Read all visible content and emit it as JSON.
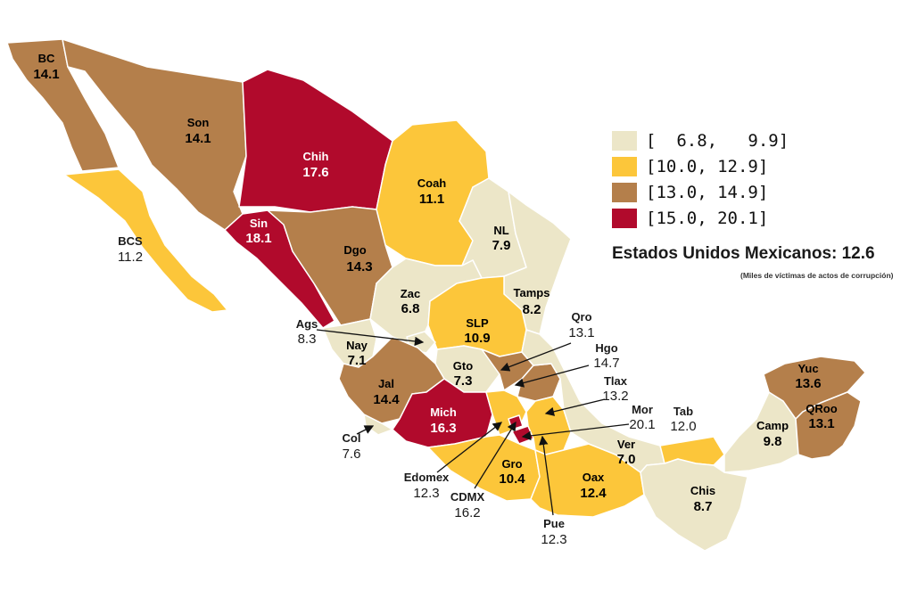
{
  "colors": {
    "c1": "#ECE6C8",
    "c2": "#FCC63A",
    "c3": "#B47F4B",
    "c4": "#B10A2C"
  },
  "legend": [
    {
      "label": "[  6.8,   9.9]",
      "color_key": "c1"
    },
    {
      "label": "[10.0, 12.9]",
      "color_key": "c2"
    },
    {
      "label": "[13.0, 14.9]",
      "color_key": "c3"
    },
    {
      "label": "[15.0, 20.1]",
      "color_key": "c4"
    }
  ],
  "national": "Estados Unidos Mexicanos: 12.6",
  "note": "(Miles de víctimas de actos de corrupción)",
  "states": [
    {
      "id": "bc",
      "abbr": "BC",
      "value": "14.1",
      "color_key": "c3"
    },
    {
      "id": "son",
      "abbr": "Son",
      "value": "14.1",
      "color_key": "c3"
    },
    {
      "id": "chih",
      "abbr": "Chih",
      "value": "17.6",
      "color_key": "c4"
    },
    {
      "id": "coah",
      "abbr": "Coah",
      "value": "11.1",
      "color_key": "c2"
    },
    {
      "id": "bcs",
      "abbr": "BCS",
      "value": "11.2",
      "color_key": "c2"
    },
    {
      "id": "sin",
      "abbr": "Sin",
      "value": "18.1",
      "color_key": "c4"
    },
    {
      "id": "dgo",
      "abbr": "Dgo",
      "value": "14.3",
      "color_key": "c3"
    },
    {
      "id": "nl",
      "abbr": "NL",
      "value": "7.9",
      "color_key": "c1"
    },
    {
      "id": "tamps",
      "abbr": "Tamps",
      "value": "8.2",
      "color_key": "c1"
    },
    {
      "id": "zac",
      "abbr": "Zac",
      "value": "6.8",
      "color_key": "c1"
    },
    {
      "id": "slp",
      "abbr": "SLP",
      "value": "10.9",
      "color_key": "c2"
    },
    {
      "id": "ags",
      "abbr": "Ags",
      "value": "8.3",
      "color_key": "c1"
    },
    {
      "id": "nay",
      "abbr": "Nay",
      "value": "7.1",
      "color_key": "c1"
    },
    {
      "id": "gto",
      "abbr": "Gto",
      "value": "7.3",
      "color_key": "c1"
    },
    {
      "id": "qro",
      "abbr": "Qro",
      "value": "13.1",
      "color_key": "c3"
    },
    {
      "id": "hgo",
      "abbr": "Hgo",
      "value": "14.7",
      "color_key": "c3"
    },
    {
      "id": "jal",
      "abbr": "Jal",
      "value": "14.4",
      "color_key": "c3"
    },
    {
      "id": "tlax",
      "abbr": "Tlax",
      "value": "13.2",
      "color_key": "c3"
    },
    {
      "id": "mich",
      "abbr": "Mich",
      "value": "16.3",
      "color_key": "c4"
    },
    {
      "id": "mor",
      "abbr": "Mor",
      "value": "20.1",
      "color_key": "c4"
    },
    {
      "id": "col",
      "abbr": "Col",
      "value": "7.6",
      "color_key": "c1"
    },
    {
      "id": "edomex",
      "abbr": "Edomex",
      "value": "12.3",
      "color_key": "c2"
    },
    {
      "id": "cdmx",
      "abbr": "CDMX",
      "value": "16.2",
      "color_key": "c4"
    },
    {
      "id": "gro",
      "abbr": "Gro",
      "value": "10.4",
      "color_key": "c2"
    },
    {
      "id": "pue",
      "abbr": "Pue",
      "value": "12.3",
      "color_key": "c2"
    },
    {
      "id": "oax",
      "abbr": "Oax",
      "value": "12.4",
      "color_key": "c2"
    },
    {
      "id": "ver",
      "abbr": "Ver",
      "value": "7.0",
      "color_key": "c1"
    },
    {
      "id": "tab",
      "abbr": "Tab",
      "value": "12.0",
      "color_key": "c2"
    },
    {
      "id": "chis",
      "abbr": "Chis",
      "value": "8.7",
      "color_key": "c1"
    },
    {
      "id": "camp",
      "abbr": "Camp",
      "value": "9.8",
      "color_key": "c1"
    },
    {
      "id": "yuc",
      "abbr": "Yuc",
      "value": "13.6",
      "color_key": "c3"
    },
    {
      "id": "qroo",
      "abbr": "QRoo",
      "value": "13.1",
      "color_key": "c3"
    }
  ]
}
